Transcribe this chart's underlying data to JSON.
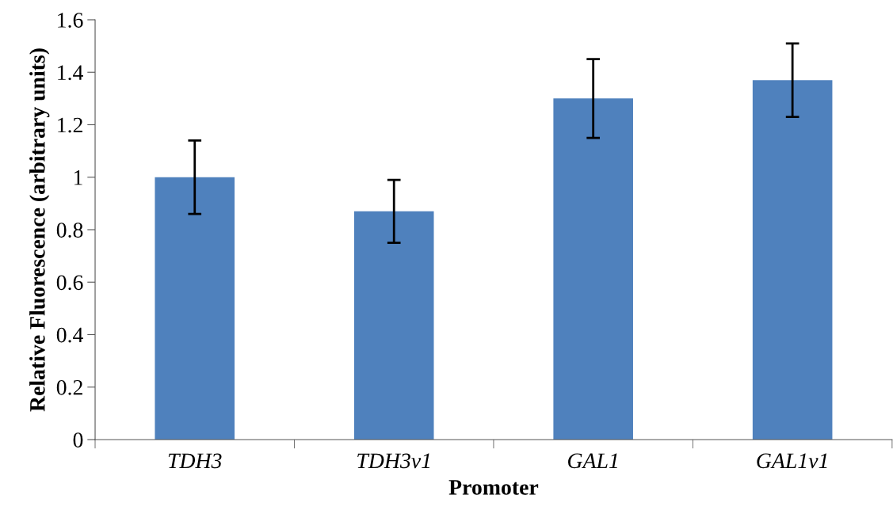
{
  "chart_data": {
    "type": "bar",
    "xlabel": "Promoter",
    "ylabel": "Relative Fluorescence (arbitrary units)",
    "categories": [
      "TDH3",
      "TDH3v1",
      "GAL1",
      "GAL1v1"
    ],
    "values": [
      1.0,
      0.87,
      1.3,
      1.37
    ],
    "errors": [
      0.14,
      0.12,
      0.15,
      0.14
    ],
    "color": "#4f81bd",
    "ylim": [
      0,
      1.6
    ],
    "yticks": [
      0,
      0.2,
      0.4,
      0.6,
      0.8,
      1,
      1.2,
      1.4,
      1.6
    ],
    "grid": false,
    "legend": false
  }
}
